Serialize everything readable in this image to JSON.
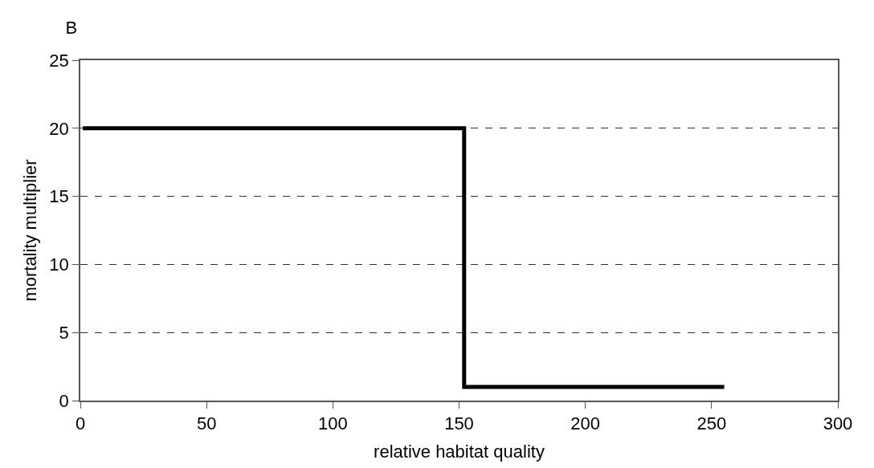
{
  "chart_data": {
    "type": "step",
    "title": "B",
    "xlabel": "relative habitat quality",
    "ylabel": "mortality multiplier",
    "x": [
      1,
      152,
      255
    ],
    "series": [
      {
        "color": "#000000",
        "values": [
          20,
          1,
          1
        ]
      }
    ],
    "xlim": [
      0,
      300
    ],
    "xticks": [
      0,
      50,
      100,
      150,
      200,
      250,
      300
    ],
    "ylim": [
      0,
      25
    ],
    "yticks": [
      0,
      5,
      10,
      15,
      20,
      25
    ],
    "grid": "y",
    "line_style": "solid",
    "marker": "none"
  }
}
